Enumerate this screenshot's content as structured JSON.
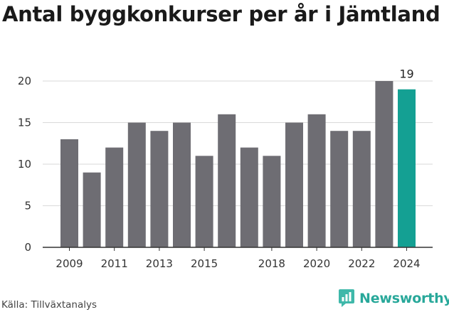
{
  "title": "Antal byggkonkurser per år i Jämtland",
  "source": "Källa: Tillväxtanalys",
  "brand": {
    "name": "Newsworthy",
    "icon": "newsworthy-logo-icon"
  },
  "colors": {
    "bar": "#6e6d73",
    "highlight": "#14a093",
    "grid": "#d9d9d9",
    "axis": "#333333"
  },
  "chart_data": {
    "type": "bar",
    "categories": [
      "2009",
      "2010",
      "2011",
      "2012",
      "2013",
      "2014",
      "2015",
      "2016",
      "2017",
      "2018",
      "2019",
      "2020",
      "2021",
      "2022",
      "2023",
      "2024"
    ],
    "values": [
      13,
      9,
      12,
      15,
      14,
      15,
      11,
      16,
      12,
      11,
      15,
      16,
      14,
      14,
      20,
      19
    ],
    "xtick_labels": [
      "2009",
      "2011",
      "2013",
      "2015",
      "2018",
      "2020",
      "2022",
      "2024"
    ],
    "yticks": [
      0,
      5,
      10,
      15,
      20
    ],
    "ylim": [
      0,
      20
    ],
    "highlight_index": 15,
    "data_labels": [
      {
        "index": 15,
        "text": "19"
      }
    ],
    "grid": true
  }
}
